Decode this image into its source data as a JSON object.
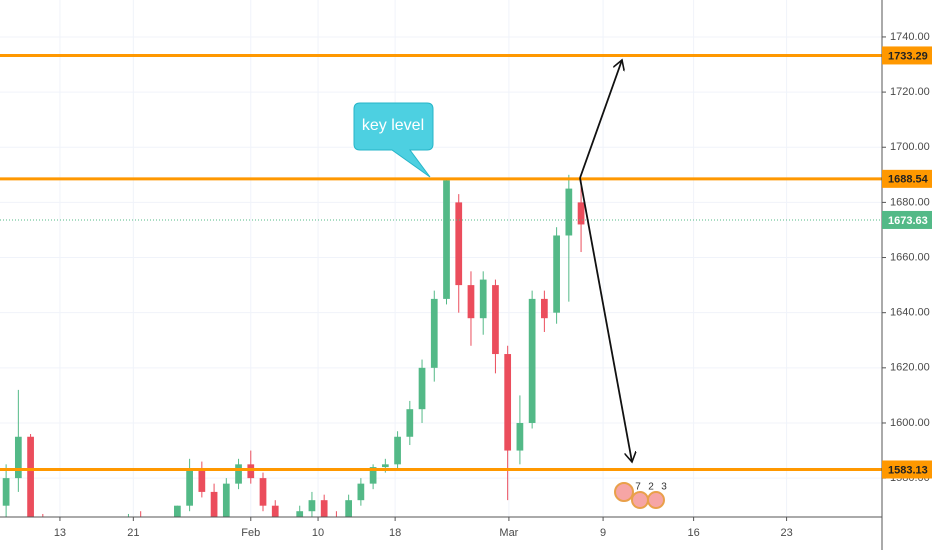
{
  "chart_data": {
    "type": "candlestick",
    "annotation": "key level",
    "open": [
      1570,
      1580,
      1595,
      1565,
      1552,
      1556,
      1550,
      1554,
      1548,
      1552,
      1558,
      1565,
      1561,
      1556,
      1562,
      1570,
      1583,
      1575,
      1566,
      1578,
      1585,
      1580,
      1570,
      1562,
      1560,
      1568,
      1572,
      1566,
      1565,
      1572,
      1578,
      1584,
      1585,
      1595,
      1605,
      1620,
      1645,
      1680,
      1650,
      1638,
      1650,
      1625,
      1590,
      1600,
      1645,
      1640,
      1668,
      1680
    ],
    "high": [
      1585,
      1612,
      1596,
      1567,
      1560,
      1559,
      1556,
      1557,
      1553,
      1560,
      1567,
      1568,
      1563,
      1563,
      1570,
      1587,
      1586,
      1578,
      1580,
      1587,
      1590,
      1582,
      1572,
      1565,
      1570,
      1575,
      1574,
      1568,
      1574,
      1580,
      1585,
      1587,
      1597,
      1608,
      1623,
      1648,
      1689,
      1683,
      1655,
      1655,
      1652,
      1628,
      1610,
      1648,
      1648,
      1671,
      1690,
      1688
    ],
    "low": [
      1565,
      1575,
      1555,
      1548,
      1549,
      1548,
      1547,
      1546,
      1545,
      1550,
      1556,
      1559,
      1554,
      1554,
      1560,
      1568,
      1573,
      1563,
      1564,
      1576,
      1578,
      1568,
      1560,
      1558,
      1558,
      1566,
      1564,
      1563,
      1563,
      1570,
      1576,
      1582,
      1583,
      1592,
      1600,
      1615,
      1643,
      1640,
      1628,
      1632,
      1618,
      1572,
      1585,
      1598,
      1633,
      1636,
      1644,
      1662
    ],
    "close": [
      1580,
      1595,
      1565,
      1552,
      1556,
      1550,
      1554,
      1548,
      1552,
      1558,
      1565,
      1561,
      1556,
      1562,
      1570,
      1583,
      1575,
      1566,
      1578,
      1585,
      1580,
      1570,
      1562,
      1560,
      1568,
      1572,
      1566,
      1565,
      1572,
      1578,
      1584,
      1585,
      1595,
      1605,
      1620,
      1645,
      1688,
      1650,
      1638,
      1652,
      1625,
      1590,
      1600,
      1645,
      1638,
      1668,
      1685,
      1672
    ],
    "up_color": "#53b987",
    "down_color": "#eb4d5c",
    "level_color": "#ff9800",
    "levels": [
      1733.29,
      1688.54,
      1583.13
    ],
    "current_price": 1673.63,
    "current_color": "#53b987",
    "xlim": [
      -0.5,
      71.6
    ],
    "xticks": [
      {
        "value": 4.4,
        "label": "13"
      },
      {
        "value": 10.4,
        "label": "21"
      },
      {
        "value": 20,
        "label": "Feb"
      },
      {
        "value": 25.5,
        "label": "10"
      },
      {
        "value": 31.8,
        "label": "18"
      },
      {
        "value": 41.1,
        "label": "Mar"
      },
      {
        "value": 48.8,
        "label": "9"
      },
      {
        "value": 56.2,
        "label": "16"
      },
      {
        "value": 63.8,
        "label": "23"
      }
    ],
    "ylim": [
      1565.9,
      1753.4
    ],
    "yticks": [
      {
        "value": 1580,
        "label": "1580.00"
      },
      {
        "value": 1600,
        "label": "1600.00"
      },
      {
        "value": 1620,
        "label": "1620.00"
      },
      {
        "value": 1640,
        "label": "1640.00"
      },
      {
        "value": 1660,
        "label": "1660.00"
      },
      {
        "value": 1680,
        "label": "1680.00"
      },
      {
        "value": 1700,
        "label": "1700.00"
      },
      {
        "value": 1720,
        "label": "1720.00"
      },
      {
        "value": 1740,
        "label": "1740.00"
      }
    ],
    "grid": true,
    "events": [
      "7",
      "2",
      "3"
    ]
  }
}
